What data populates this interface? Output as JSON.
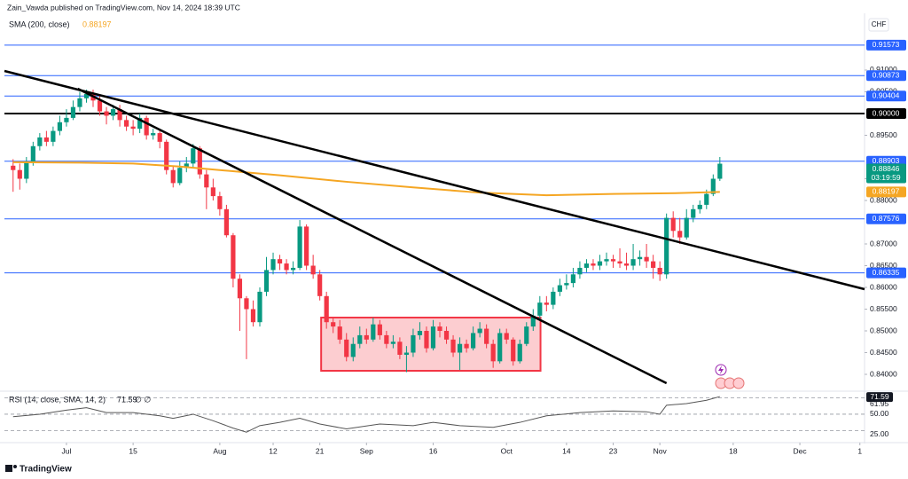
{
  "header": {
    "attribution": "Zain_Vawda published on TradingView.com, Nov 14, 2024 18:39 UTC",
    "currency": "CHF",
    "brand": "TradingView"
  },
  "chart_data": {
    "type": "candlestick",
    "indicator_label": "SMA (200, close)",
    "indicator_value": 0.88197,
    "up_color": "#089981",
    "down_color": "#f23645",
    "open": [
      0.888,
      0.887,
      0.885,
      0.889,
      0.8925,
      0.8945,
      0.8935,
      0.896,
      0.898,
      0.899,
      0.9015,
      0.9035,
      0.9045,
      0.903,
      0.9005,
      0.8995,
      0.901,
      0.8985,
      0.897,
      0.8965,
      0.899,
      0.895,
      0.8955,
      0.8935,
      0.887,
      0.884,
      0.8875,
      0.8885,
      0.892,
      0.886,
      0.883,
      0.881,
      0.878,
      0.872,
      0.862,
      0.8575,
      0.855,
      0.852,
      0.859,
      0.864,
      0.8665,
      0.8655,
      0.864,
      0.8645,
      0.874,
      0.865,
      0.863,
      0.858,
      0.852,
      0.851,
      0.848,
      0.844,
      0.847,
      0.849,
      0.848,
      0.8515,
      0.849,
      0.847,
      0.8475,
      0.8445,
      0.845,
      0.849,
      0.85,
      0.846,
      0.851,
      0.85,
      0.848,
      0.845,
      0.847,
      0.846,
      0.8495,
      0.8505,
      0.847,
      0.843,
      0.8495,
      0.848,
      0.843,
      0.847,
      0.851,
      0.8535,
      0.8565,
      0.856,
      0.859,
      0.8605,
      0.861,
      0.863,
      0.8645,
      0.8655,
      0.865,
      0.866,
      0.8665,
      0.866,
      0.8655,
      0.865,
      0.8665,
      0.867,
      0.866,
      0.8645,
      0.863,
      0.876,
      0.873,
      0.8715,
      0.876,
      0.878,
      0.879,
      0.8815,
      0.885
    ],
    "high": [
      0.8895,
      0.8885,
      0.89,
      0.8935,
      0.8955,
      0.896,
      0.897,
      0.8995,
      0.901,
      0.903,
      0.905,
      0.9055,
      0.9055,
      0.904,
      0.9015,
      0.902,
      0.902,
      0.8995,
      0.8985,
      0.9,
      0.8995,
      0.8965,
      0.8965,
      0.894,
      0.888,
      0.889,
      0.89,
      0.893,
      0.8925,
      0.887,
      0.885,
      0.882,
      0.879,
      0.8725,
      0.863,
      0.858,
      0.857,
      0.86,
      0.867,
      0.868,
      0.8675,
      0.8665,
      0.866,
      0.8755,
      0.8745,
      0.8675,
      0.864,
      0.859,
      0.853,
      0.8525,
      0.8495,
      0.8485,
      0.851,
      0.8505,
      0.853,
      0.8525,
      0.85,
      0.849,
      0.8485,
      0.8465,
      0.8505,
      0.852,
      0.851,
      0.8525,
      0.852,
      0.851,
      0.849,
      0.8485,
      0.848,
      0.851,
      0.852,
      0.8515,
      0.848,
      0.8505,
      0.8505,
      0.8485,
      0.848,
      0.852,
      0.855,
      0.858,
      0.858,
      0.86,
      0.862,
      0.863,
      0.8645,
      0.866,
      0.8665,
      0.8665,
      0.8675,
      0.868,
      0.8675,
      0.869,
      0.868,
      0.87,
      0.8685,
      0.87,
      0.8675,
      0.866,
      0.877,
      0.8775,
      0.876,
      0.878,
      0.879,
      0.88,
      0.8825,
      0.886,
      0.89
    ],
    "low": [
      0.882,
      0.8825,
      0.884,
      0.888,
      0.8915,
      0.8925,
      0.8925,
      0.895,
      0.897,
      0.8985,
      0.9005,
      0.9025,
      0.9015,
      0.8995,
      0.8975,
      0.8985,
      0.897,
      0.896,
      0.895,
      0.8955,
      0.894,
      0.894,
      0.892,
      0.886,
      0.883,
      0.8835,
      0.8865,
      0.8875,
      0.885,
      0.878,
      0.88,
      0.8765,
      0.8715,
      0.86,
      0.85,
      0.8435,
      0.851,
      0.851,
      0.858,
      0.863,
      0.864,
      0.863,
      0.863,
      0.864,
      0.864,
      0.862,
      0.857,
      0.8505,
      0.8495,
      0.847,
      0.843,
      0.843,
      0.846,
      0.847,
      0.8475,
      0.848,
      0.846,
      0.846,
      0.8435,
      0.8405,
      0.844,
      0.848,
      0.845,
      0.8455,
      0.8485,
      0.847,
      0.844,
      0.841,
      0.845,
      0.8455,
      0.8485,
      0.846,
      0.8415,
      0.8425,
      0.847,
      0.842,
      0.8425,
      0.8465,
      0.85,
      0.8525,
      0.8545,
      0.855,
      0.858,
      0.8595,
      0.86,
      0.862,
      0.8635,
      0.864,
      0.864,
      0.865,
      0.8645,
      0.8645,
      0.864,
      0.864,
      0.865,
      0.8645,
      0.862,
      0.8615,
      0.862,
      0.8715,
      0.87,
      0.871,
      0.875,
      0.877,
      0.878,
      0.881,
      0.8845
    ],
    "close": [
      0.887,
      0.885,
      0.889,
      0.8925,
      0.8945,
      0.8935,
      0.896,
      0.898,
      0.899,
      0.9015,
      0.9035,
      0.9045,
      0.903,
      0.9005,
      0.8995,
      0.901,
      0.8985,
      0.897,
      0.8965,
      0.899,
      0.895,
      0.8955,
      0.8935,
      0.887,
      0.884,
      0.8875,
      0.8885,
      0.892,
      0.886,
      0.883,
      0.881,
      0.878,
      0.872,
      0.862,
      0.8575,
      0.855,
      0.852,
      0.859,
      0.864,
      0.8665,
      0.8655,
      0.864,
      0.8645,
      0.874,
      0.865,
      0.863,
      0.858,
      0.852,
      0.851,
      0.848,
      0.844,
      0.847,
      0.849,
      0.848,
      0.8515,
      0.849,
      0.847,
      0.8475,
      0.8445,
      0.845,
      0.849,
      0.85,
      0.846,
      0.851,
      0.85,
      0.848,
      0.845,
      0.847,
      0.846,
      0.8495,
      0.8505,
      0.847,
      0.843,
      0.8495,
      0.848,
      0.843,
      0.847,
      0.851,
      0.8535,
      0.8565,
      0.856,
      0.859,
      0.8605,
      0.861,
      0.863,
      0.8645,
      0.8655,
      0.865,
      0.866,
      0.8665,
      0.866,
      0.8655,
      0.865,
      0.8665,
      0.867,
      0.866,
      0.8645,
      0.863,
      0.876,
      0.873,
      0.8715,
      0.876,
      0.878,
      0.879,
      0.8815,
      0.885,
      0.88846
    ],
    "last_price": 0.88846,
    "countdown": "03:19:59",
    "xlim": [
      -1.3,
      127.7
    ],
    "ylim": [
      0.83633,
      0.92306
    ],
    "xticks": [
      {
        "value": 8,
        "label": "Jul"
      },
      {
        "value": 18,
        "label": "15"
      },
      {
        "value": 31,
        "label": "Aug"
      },
      {
        "value": 39,
        "label": "12"
      },
      {
        "value": 46,
        "label": "21"
      },
      {
        "value": 53,
        "label": "Sep"
      },
      {
        "value": 63,
        "label": "16"
      },
      {
        "value": 74,
        "label": "Oct"
      },
      {
        "value": 83,
        "label": "14"
      },
      {
        "value": 90,
        "label": "23"
      },
      {
        "value": 97,
        "label": "Nov"
      },
      {
        "value": 108,
        "label": "18"
      },
      {
        "value": 118,
        "label": "Dec"
      },
      {
        "value": 127,
        "label": "1"
      }
    ],
    "yticks": [
      {
        "value": 0.91,
        "label": "0.91000"
      },
      {
        "value": 0.905,
        "label": "0.90500"
      },
      {
        "value": 0.895,
        "label": "0.89500"
      },
      {
        "value": 0.885,
        "label": "0.88500"
      },
      {
        "value": 0.88,
        "label": "0.88000"
      },
      {
        "value": 0.87,
        "label": "0.87000"
      },
      {
        "value": 0.865,
        "label": "0.86500"
      },
      {
        "value": 0.86,
        "label": "0.86000"
      },
      {
        "value": 0.855,
        "label": "0.85500"
      },
      {
        "value": 0.85,
        "label": "0.85000"
      },
      {
        "value": 0.845,
        "label": "0.84500"
      },
      {
        "value": 0.84,
        "label": "0.84000"
      }
    ],
    "levels": [
      0.91573,
      0.90873,
      0.90404,
      {
        "value": 0.9,
        "label": "0.90000"
      },
      0.88903,
      0.87576,
      0.86335
    ],
    "level_colors": [
      "#2962ff",
      "#2962ff",
      "#2962ff",
      "#000000",
      "#2962ff",
      "#2962ff",
      "#2962ff"
    ],
    "sma": {
      "color": "#f5a623",
      "x": [
        0,
        10,
        18,
        25,
        31,
        40,
        50,
        60,
        70,
        80,
        90,
        100,
        106
      ],
      "values": [
        0.8888,
        0.8887,
        0.8885,
        0.8878,
        0.887,
        0.8858,
        0.8843,
        0.883,
        0.8818,
        0.8812,
        0.8815,
        0.8817,
        0.88197
      ]
    },
    "trendlines": [
      {
        "x": [
          -1.3,
          127.7
        ],
        "values": [
          0.9098,
          0.85959
        ]
      },
      {
        "x": [
          9.7,
          98.0
        ],
        "values": [
          0.90571,
          0.83796
        ]
      }
    ],
    "trendline_color": "#000000",
    "zone": {
      "x": [
        46.2,
        79.1
      ],
      "values": [
        0.84082,
        0.85306
      ],
      "color": "#f23645"
    },
    "rsi": {
      "label": "RSI (14, close, SMA, 14, 2)",
      "value": 71.59,
      "ma_value": 61.95,
      "extra": "∅ ∅",
      "color": "#7e57c2",
      "ylim": [
        17.4,
        76
      ],
      "yticks": [
        {
          "value": 50,
          "label": "50.00"
        },
        {
          "value": 25,
          "label": "25.00"
        }
      ],
      "bands": [
        70,
        50,
        30
      ],
      "x": [
        0,
        4,
        8,
        11,
        14,
        18,
        22,
        24,
        27,
        30,
        33,
        35,
        37,
        40,
        43,
        46,
        50,
        55,
        60,
        63,
        67,
        72,
        76,
        80,
        85,
        90,
        95,
        97,
        98,
        101,
        104,
        106
      ],
      "values": [
        47,
        50,
        55,
        58,
        52,
        52,
        48,
        45,
        50,
        42,
        33,
        28,
        36,
        40,
        45,
        38,
        32,
        38,
        36,
        40,
        36,
        34,
        40,
        48,
        52,
        54,
        53,
        50,
        61,
        63,
        67,
        71.59
      ]
    }
  }
}
